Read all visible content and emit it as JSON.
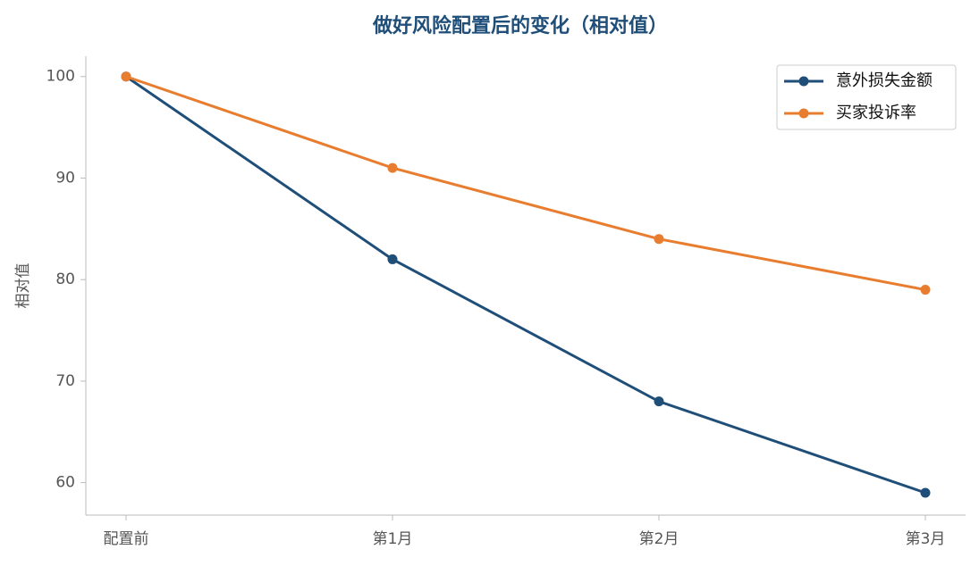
{
  "chart_data": {
    "type": "line",
    "title": "做好风险配置后的变化（相对值）",
    "ylabel": "相对值",
    "categories": [
      "配置前",
      "第1月",
      "第2月",
      "第3月"
    ],
    "series": [
      {
        "name": "意外损失金额",
        "color": "#1f4e79",
        "values": [
          100,
          82,
          68,
          59
        ]
      },
      {
        "name": "买家投诉率",
        "color": "#e87d2f",
        "values": [
          100,
          91,
          84,
          79
        ]
      }
    ],
    "ylim": [
      56.8,
      102.0
    ],
    "yticks": [
      60,
      70,
      80,
      90,
      100
    ],
    "grid": false,
    "legend": "upper right"
  }
}
